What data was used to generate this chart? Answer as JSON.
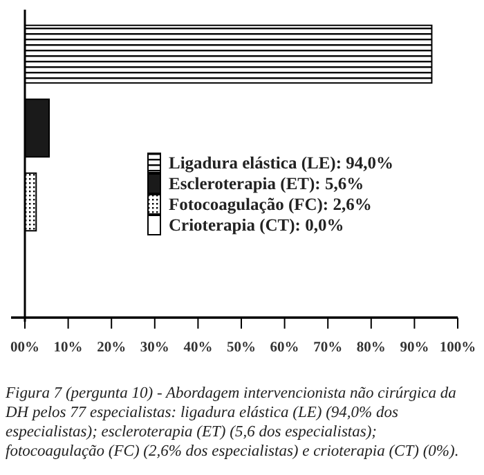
{
  "chart_data": {
    "type": "bar",
    "orientation": "horizontal",
    "categories": [
      null,
      null,
      null,
      null
    ],
    "series": [
      {
        "name": "Ligadura elástica (LE): 94,0%",
        "color": "#000000",
        "values": [
          94.0,
          null,
          null,
          null
        ]
      },
      {
        "name": "Escleroterapia (ET): 5,6%",
        "color": "#1a1a1a",
        "values": [
          null,
          5.6,
          null,
          null
        ]
      },
      {
        "name": "Fotocoagulação (FC): 2,6%",
        "color": "#000000",
        "values": [
          null,
          null,
          2.6,
          null
        ]
      },
      {
        "name": "Crioterapia (CT): 0,0%",
        "color": "#ffffff",
        "values": [
          null,
          null,
          null,
          0.0
        ]
      }
    ],
    "xlim": [
      0,
      100
    ],
    "xticks": [
      {
        "value": 0,
        "label": "00%"
      },
      {
        "value": 10,
        "label": "10%"
      },
      {
        "value": 20,
        "label": "20%"
      },
      {
        "value": 30,
        "label": "30%"
      },
      {
        "value": 40,
        "label": "40%"
      },
      {
        "value": 50,
        "label": "50%"
      },
      {
        "value": 60,
        "label": "60%"
      },
      {
        "value": 70,
        "label": "70%"
      },
      {
        "value": 80,
        "label": "80%"
      },
      {
        "value": 90,
        "label": "90%"
      },
      {
        "value": 100,
        "label": "100%"
      }
    ],
    "legend": "right",
    "grid": false,
    "annotations": [
      "Figura 7 (pergunta 10) - Abordagem intervencionista não cirúrgica da DH pelos 77 especialistas: ligadura elástica (LE) (94,0% dos especialistas); escleroterapia (ET) (5,6 dos especialistas); fotocoagulação (FC) (2,6% dos especialistas) e crioterapia (CT) (0%)."
    ]
  }
}
